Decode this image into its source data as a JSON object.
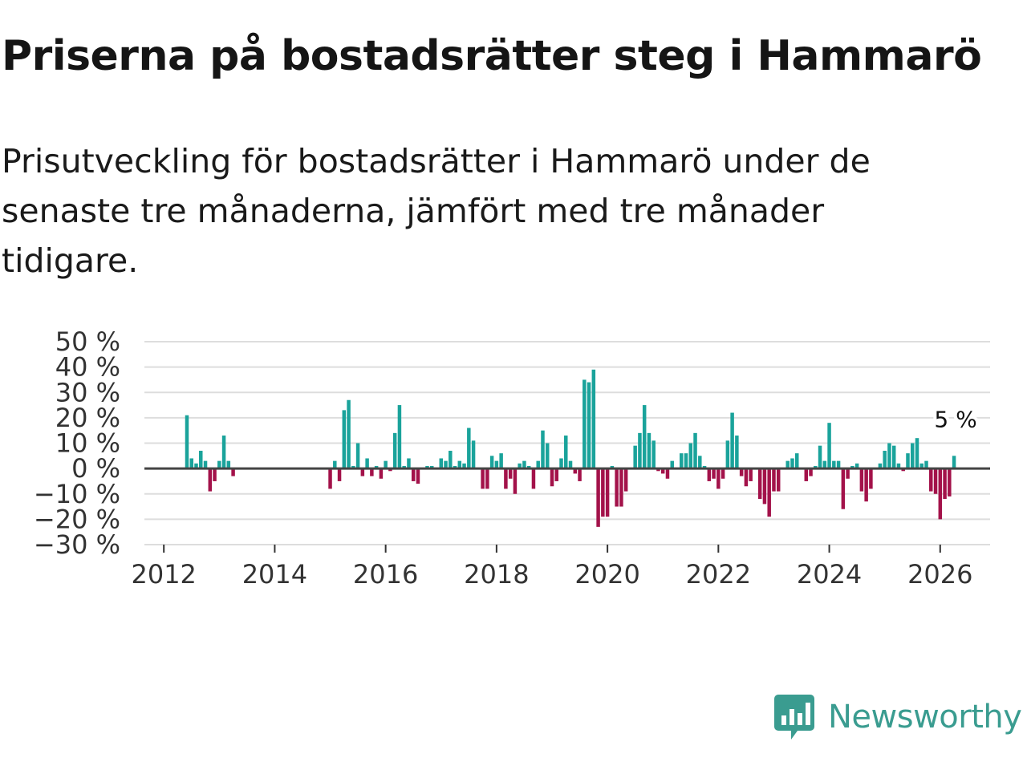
{
  "title": "Priserna på bostadsrätter steg i Hammarö",
  "subtitle": "Prisutveckling för bostadsrätter i Hammarö under de senaste tre månaderna, jämfört med tre månader tidigare.",
  "brand": {
    "name": "Newsworthy",
    "color": "#3a9c90"
  },
  "colors": {
    "positive": "#1aa39b",
    "negative": "#a3124a",
    "grid": "#dddddd",
    "zero": "#444444"
  },
  "chart_data": {
    "type": "bar",
    "title": "Priserna på bostadsrätter steg i Hammarö",
    "xlabel": "",
    "ylabel": "",
    "ylim": [
      -30,
      50
    ],
    "xlim": [
      2011.65,
      2026.9
    ],
    "yticks": [
      -30,
      -20,
      -10,
      0,
      10,
      20,
      30,
      40,
      50
    ],
    "ytick_labels": [
      "−30 %",
      "−20 %",
      "−10 %",
      "0 %",
      "10 %",
      "20 %",
      "30 %",
      "40 %",
      "50 %"
    ],
    "xticks": [
      2012,
      2014,
      2016,
      2018,
      2020,
      2022,
      2024,
      2026
    ],
    "xtick_labels": [
      "2012",
      "2014",
      "2016",
      "2018",
      "2020",
      "2022",
      "2024",
      "2026"
    ],
    "last_value_label": "5 %",
    "series": [
      {
        "name": "Prisutveckling",
        "points": [
          {
            "date": "2012-06",
            "value": 21
          },
          {
            "date": "2012-07",
            "value": 4
          },
          {
            "date": "2012-08",
            "value": 2
          },
          {
            "date": "2012-09",
            "value": 7
          },
          {
            "date": "2012-10",
            "value": 3
          },
          {
            "date": "2012-11",
            "value": -9
          },
          {
            "date": "2012-12",
            "value": -5
          },
          {
            "date": "2013-01",
            "value": 3
          },
          {
            "date": "2013-02",
            "value": 13
          },
          {
            "date": "2013-03",
            "value": 3
          },
          {
            "date": "2013-04",
            "value": -3
          },
          {
            "date": "2015-01",
            "value": -8
          },
          {
            "date": "2015-02",
            "value": 3
          },
          {
            "date": "2015-03",
            "value": -5
          },
          {
            "date": "2015-04",
            "value": 23
          },
          {
            "date": "2015-05",
            "value": 27
          },
          {
            "date": "2015-06",
            "value": 1
          },
          {
            "date": "2015-07",
            "value": 10
          },
          {
            "date": "2015-08",
            "value": -3
          },
          {
            "date": "2015-09",
            "value": 4
          },
          {
            "date": "2015-10",
            "value": -3
          },
          {
            "date": "2015-11",
            "value": 1
          },
          {
            "date": "2015-12",
            "value": -4
          },
          {
            "date": "2016-01",
            "value": 3
          },
          {
            "date": "2016-02",
            "value": -1
          },
          {
            "date": "2016-03",
            "value": 14
          },
          {
            "date": "2016-04",
            "value": 25
          },
          {
            "date": "2016-05",
            "value": 1
          },
          {
            "date": "2016-06",
            "value": 4
          },
          {
            "date": "2016-07",
            "value": -5
          },
          {
            "date": "2016-08",
            "value": -6
          },
          {
            "date": "2016-09",
            "value": 0
          },
          {
            "date": "2016-10",
            "value": 1
          },
          {
            "date": "2016-11",
            "value": 1
          },
          {
            "date": "2016-12",
            "value": 0
          },
          {
            "date": "2017-01",
            "value": 4
          },
          {
            "date": "2017-02",
            "value": 3
          },
          {
            "date": "2017-03",
            "value": 7
          },
          {
            "date": "2017-04",
            "value": 1
          },
          {
            "date": "2017-05",
            "value": 3
          },
          {
            "date": "2017-06",
            "value": 2
          },
          {
            "date": "2017-07",
            "value": 16
          },
          {
            "date": "2017-08",
            "value": 11
          },
          {
            "date": "2017-09",
            "value": 0
          },
          {
            "date": "2017-10",
            "value": -8
          },
          {
            "date": "2017-11",
            "value": -8
          },
          {
            "date": "2017-12",
            "value": 5
          },
          {
            "date": "2018-01",
            "value": 3
          },
          {
            "date": "2018-02",
            "value": 6
          },
          {
            "date": "2018-03",
            "value": -8
          },
          {
            "date": "2018-04",
            "value": -4
          },
          {
            "date": "2018-05",
            "value": -10
          },
          {
            "date": "2018-06",
            "value": 2
          },
          {
            "date": "2018-07",
            "value": 3
          },
          {
            "date": "2018-08",
            "value": 1
          },
          {
            "date": "2018-09",
            "value": -8
          },
          {
            "date": "2018-10",
            "value": 3
          },
          {
            "date": "2018-11",
            "value": 15
          },
          {
            "date": "2018-12",
            "value": 10
          },
          {
            "date": "2019-01",
            "value": -7
          },
          {
            "date": "2019-02",
            "value": -5
          },
          {
            "date": "2019-03",
            "value": 4
          },
          {
            "date": "2019-04",
            "value": 13
          },
          {
            "date": "2019-05",
            "value": 3
          },
          {
            "date": "2019-06",
            "value": -2
          },
          {
            "date": "2019-07",
            "value": -5
          },
          {
            "date": "2019-08",
            "value": 35
          },
          {
            "date": "2019-09",
            "value": 34
          },
          {
            "date": "2019-10",
            "value": 39
          },
          {
            "date": "2019-11",
            "value": -23
          },
          {
            "date": "2019-12",
            "value": -19
          },
          {
            "date": "2020-01",
            "value": -19
          },
          {
            "date": "2020-02",
            "value": 1
          },
          {
            "date": "2020-03",
            "value": -15
          },
          {
            "date": "2020-04",
            "value": -15
          },
          {
            "date": "2020-05",
            "value": -9
          },
          {
            "date": "2020-06",
            "value": 0
          },
          {
            "date": "2020-07",
            "value": 9
          },
          {
            "date": "2020-08",
            "value": 14
          },
          {
            "date": "2020-09",
            "value": 25
          },
          {
            "date": "2020-10",
            "value": 14
          },
          {
            "date": "2020-11",
            "value": 11
          },
          {
            "date": "2020-12",
            "value": -1
          },
          {
            "date": "2021-01",
            "value": -2
          },
          {
            "date": "2021-02",
            "value": -4
          },
          {
            "date": "2021-03",
            "value": 3
          },
          {
            "date": "2021-04",
            "value": 0
          },
          {
            "date": "2021-05",
            "value": 6
          },
          {
            "date": "2021-06",
            "value": 6
          },
          {
            "date": "2021-07",
            "value": 10
          },
          {
            "date": "2021-08",
            "value": 14
          },
          {
            "date": "2021-09",
            "value": 5
          },
          {
            "date": "2021-10",
            "value": 1
          },
          {
            "date": "2021-11",
            "value": -5
          },
          {
            "date": "2021-12",
            "value": -4
          },
          {
            "date": "2022-01",
            "value": -8
          },
          {
            "date": "2022-02",
            "value": -4
          },
          {
            "date": "2022-03",
            "value": 11
          },
          {
            "date": "2022-04",
            "value": 22
          },
          {
            "date": "2022-05",
            "value": 13
          },
          {
            "date": "2022-06",
            "value": -3
          },
          {
            "date": "2022-07",
            "value": -7
          },
          {
            "date": "2022-08",
            "value": -5
          },
          {
            "date": "2022-09",
            "value": 0
          },
          {
            "date": "2022-10",
            "value": -12
          },
          {
            "date": "2022-11",
            "value": -14
          },
          {
            "date": "2022-12",
            "value": -19
          },
          {
            "date": "2023-01",
            "value": -9
          },
          {
            "date": "2023-02",
            "value": -9
          },
          {
            "date": "2023-03",
            "value": 0
          },
          {
            "date": "2023-04",
            "value": 3
          },
          {
            "date": "2023-05",
            "value": 4
          },
          {
            "date": "2023-06",
            "value": 6
          },
          {
            "date": "2023-07",
            "value": 0
          },
          {
            "date": "2023-08",
            "value": -5
          },
          {
            "date": "2023-09",
            "value": -3
          },
          {
            "date": "2023-10",
            "value": 1
          },
          {
            "date": "2023-11",
            "value": 9
          },
          {
            "date": "2023-12",
            "value": 3
          },
          {
            "date": "2024-01",
            "value": 18
          },
          {
            "date": "2024-02",
            "value": 3
          },
          {
            "date": "2024-03",
            "value": 3
          },
          {
            "date": "2024-04",
            "value": -16
          },
          {
            "date": "2024-05",
            "value": -4
          },
          {
            "date": "2024-06",
            "value": 1
          },
          {
            "date": "2024-07",
            "value": 2
          },
          {
            "date": "2024-08",
            "value": -9
          },
          {
            "date": "2024-09",
            "value": -13
          },
          {
            "date": "2024-10",
            "value": -8
          },
          {
            "date": "2024-11",
            "value": 0
          },
          {
            "date": "2024-12",
            "value": 2
          },
          {
            "date": "2025-01",
            "value": 7
          },
          {
            "date": "2025-02",
            "value": 10
          },
          {
            "date": "2025-03",
            "value": 9
          },
          {
            "date": "2025-04",
            "value": 2
          },
          {
            "date": "2025-05",
            "value": -1
          },
          {
            "date": "2025-06",
            "value": 6
          },
          {
            "date": "2025-07",
            "value": 10
          },
          {
            "date": "2025-08",
            "value": 12
          },
          {
            "date": "2025-09",
            "value": 2
          },
          {
            "date": "2025-10",
            "value": 3
          },
          {
            "date": "2025-11",
            "value": -9
          },
          {
            "date": "2025-12",
            "value": -10
          },
          {
            "date": "2026-01",
            "value": -20
          },
          {
            "date": "2026-02",
            "value": -12
          },
          {
            "date": "2026-03",
            "value": -11
          },
          {
            "date": "2026-04",
            "value": 5
          }
        ]
      }
    ]
  }
}
